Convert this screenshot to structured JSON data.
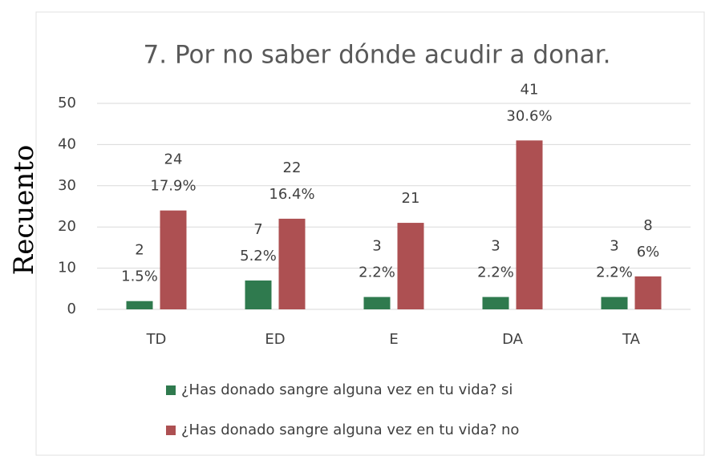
{
  "chart_data": {
    "type": "bar",
    "title": "7. Por no saber dónde acudir a donar.",
    "y_label": "Recuento",
    "categories": [
      "TD",
      "ED",
      "E",
      "DA",
      "TA"
    ],
    "series": [
      {
        "name": "¿Has donado sangre alguna vez en tu vida? si",
        "color": "#2f7a4e",
        "values": [
          2,
          7,
          3,
          3,
          3
        ],
        "percent_labels": [
          "1.5%",
          "5.2%",
          "2.2%",
          "2.2%",
          "2.2%"
        ]
      },
      {
        "name": "¿Has donado sangre alguna vez en tu vida? no",
        "color": "#ad5052",
        "values": [
          24,
          22,
          21,
          41,
          8
        ],
        "percent_labels": [
          "17.9%",
          "16.4%",
          null,
          "30.6%",
          "6%"
        ]
      }
    ],
    "ylim": [
      0,
      50
    ],
    "yticks": [
      0,
      10,
      20,
      30,
      40,
      50
    ],
    "grid": true,
    "legend": "bottom"
  }
}
